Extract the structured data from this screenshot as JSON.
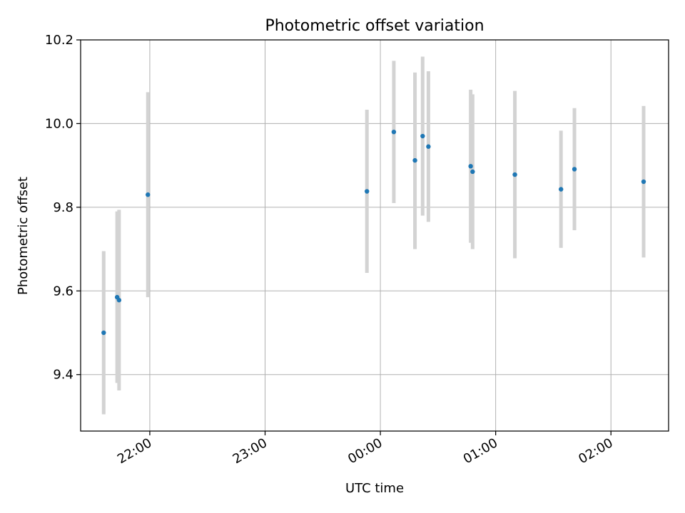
{
  "chart_data": {
    "type": "scatter",
    "title": "Photometric offset variation",
    "xlabel": "UTC time",
    "ylabel": "Photometric offset",
    "x_axis": {
      "kind": "time",
      "range": [
        "21:24",
        "02:30"
      ],
      "ticks": [
        "22:00",
        "23:00",
        "00:00",
        "01:00",
        "02:00"
      ]
    },
    "ylim": [
      9.265,
      10.2
    ],
    "yticks": [
      "9.4",
      "9.6",
      "9.8",
      "10.0",
      "10.2"
    ],
    "grid": true,
    "errorbar_color": "#d3d3d3",
    "marker_color": "#1f77b4",
    "points": [
      {
        "t": "21:36",
        "y": 9.5,
        "lo": 9.305,
        "hi": 9.695
      },
      {
        "t": "21:43",
        "y": 9.585,
        "lo": 9.38,
        "hi": 9.79
      },
      {
        "t": "21:44",
        "y": 9.578,
        "lo": 9.362,
        "hi": 9.794
      },
      {
        "t": "21:59",
        "y": 9.83,
        "lo": 9.585,
        "hi": 10.075
      },
      {
        "t": "23:53",
        "y": 9.838,
        "lo": 9.643,
        "hi": 10.033
      },
      {
        "t": "00:07",
        "y": 9.98,
        "lo": 9.81,
        "hi": 10.15
      },
      {
        "t": "00:18",
        "y": 9.912,
        "lo": 9.7,
        "hi": 10.122
      },
      {
        "t": "00:22",
        "y": 9.97,
        "lo": 9.78,
        "hi": 10.16
      },
      {
        "t": "00:25",
        "y": 9.945,
        "lo": 9.765,
        "hi": 10.125
      },
      {
        "t": "00:47",
        "y": 9.898,
        "lo": 9.715,
        "hi": 10.081
      },
      {
        "t": "00:48",
        "y": 9.885,
        "lo": 9.7,
        "hi": 10.07
      },
      {
        "t": "01:10",
        "y": 9.878,
        "lo": 9.678,
        "hi": 10.078
      },
      {
        "t": "01:34",
        "y": 9.843,
        "lo": 9.703,
        "hi": 9.983
      },
      {
        "t": "01:41",
        "y": 9.891,
        "lo": 9.745,
        "hi": 10.037
      },
      {
        "t": "02:17",
        "y": 9.861,
        "lo": 9.68,
        "hi": 10.042
      }
    ]
  }
}
